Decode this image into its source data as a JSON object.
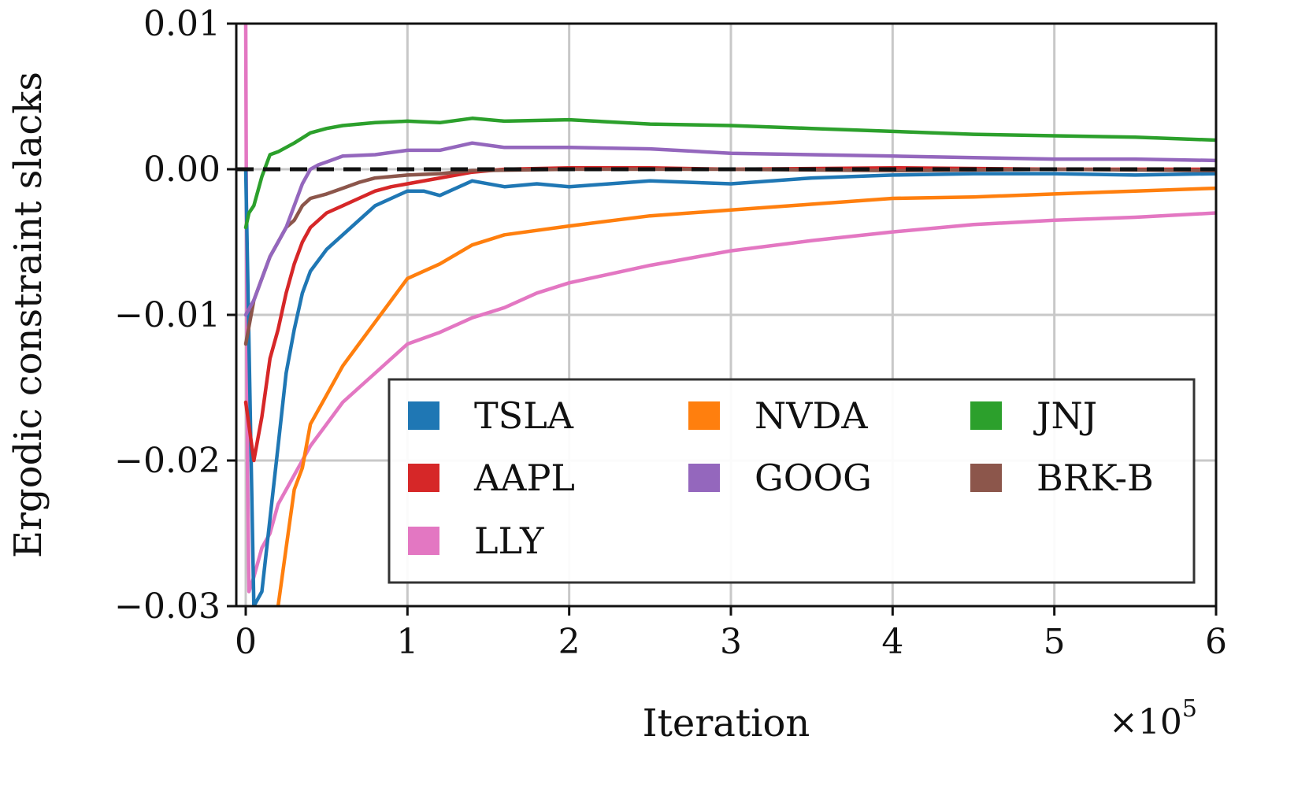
{
  "chart_data": {
    "type": "line",
    "title": "",
    "xlabel": "Iteration",
    "ylabel": "Ergodic constraint slacks",
    "x_offset_label": "×10",
    "x_offset_exponent": "5",
    "xlim": [
      -0.05,
      6
    ],
    "ylim": [
      -0.03,
      0.01
    ],
    "xticks": [
      0,
      1,
      2,
      3,
      4,
      5,
      6
    ],
    "xtick_labels": [
      "0",
      "1",
      "2",
      "3",
      "4",
      "5",
      "6"
    ],
    "yticks": [
      0.01,
      0.0,
      -0.01,
      -0.02,
      -0.03
    ],
    "ytick_labels": [
      "0.01",
      "0.00",
      "−0.01",
      "−0.02",
      "−0.03"
    ],
    "grid": true,
    "reference_line": {
      "y": 0.0,
      "style": "dashed",
      "color": "#111111"
    },
    "legend": {
      "placement": "lower-right",
      "columns": 3
    },
    "series": [
      {
        "name": "TSLA",
        "color": "#1f77b4",
        "x": [
          0.0,
          0.05,
          0.1,
          0.15,
          0.2,
          0.25,
          0.3,
          0.35,
          0.4,
          0.5,
          0.6,
          0.7,
          0.8,
          0.9,
          1.0,
          1.1,
          1.2,
          1.4,
          1.6,
          1.8,
          2.0,
          2.5,
          3.0,
          3.5,
          4.0,
          4.5,
          5.0,
          5.5,
          6.0
        ],
        "y": [
          -0.0,
          -0.03,
          -0.029,
          -0.024,
          -0.019,
          -0.014,
          -0.011,
          -0.0085,
          -0.007,
          -0.0055,
          -0.0045,
          -0.0035,
          -0.0025,
          -0.002,
          -0.0015,
          -0.0015,
          -0.0018,
          -0.0008,
          -0.0012,
          -0.001,
          -0.0012,
          -0.0008,
          -0.001,
          -0.0006,
          -0.0004,
          -0.0003,
          -0.0003,
          -0.0004,
          -0.0003
        ]
      },
      {
        "name": "NVDA",
        "color": "#ff7f0e",
        "x": [
          0.2,
          0.25,
          0.3,
          0.35,
          0.4,
          0.5,
          0.6,
          0.7,
          0.8,
          0.9,
          1.0,
          1.2,
          1.4,
          1.6,
          1.8,
          2.0,
          2.5,
          3.0,
          3.5,
          4.0,
          4.5,
          5.0,
          5.5,
          6.0
        ],
        "y": [
          -0.03,
          -0.026,
          -0.022,
          -0.0205,
          -0.0175,
          -0.0155,
          -0.0135,
          -0.012,
          -0.0105,
          -0.009,
          -0.0075,
          -0.0065,
          -0.0052,
          -0.0045,
          -0.0042,
          -0.0039,
          -0.0032,
          -0.0028,
          -0.0024,
          -0.002,
          -0.0019,
          -0.0017,
          -0.0015,
          -0.0013
        ]
      },
      {
        "name": "JNJ",
        "color": "#2ca02c",
        "x": [
          0.0,
          0.02,
          0.05,
          0.1,
          0.15,
          0.2,
          0.3,
          0.4,
          0.5,
          0.6,
          0.8,
          1.0,
          1.2,
          1.4,
          1.6,
          2.0,
          2.5,
          3.0,
          3.5,
          4.0,
          4.5,
          5.0,
          5.5,
          6.0
        ],
        "y": [
          -0.004,
          -0.003,
          -0.0025,
          -0.0005,
          0.001,
          0.0012,
          0.0018,
          0.0025,
          0.0028,
          0.003,
          0.0032,
          0.0033,
          0.0032,
          0.0035,
          0.0033,
          0.0034,
          0.0031,
          0.003,
          0.0028,
          0.0026,
          0.0024,
          0.0023,
          0.0022,
          0.002
        ]
      },
      {
        "name": "AAPL",
        "color": "#d62728",
        "x": [
          0.0,
          0.05,
          0.1,
          0.15,
          0.2,
          0.25,
          0.3,
          0.35,
          0.4,
          0.5,
          0.6,
          0.7,
          0.8,
          0.9,
          1.0,
          1.2,
          1.4,
          1.6,
          2.0,
          2.5,
          3.0,
          4.0,
          5.0,
          6.0
        ],
        "y": [
          -0.016,
          -0.02,
          -0.017,
          -0.013,
          -0.011,
          -0.0085,
          -0.0065,
          -0.005,
          -0.004,
          -0.003,
          -0.0025,
          -0.002,
          -0.0015,
          -0.0012,
          -0.001,
          -0.0006,
          -0.0002,
          0.0,
          0.0001,
          0.0001,
          0.0,
          0.0001,
          0.0,
          0.0
        ]
      },
      {
        "name": "GOOG",
        "color": "#9467bd",
        "x": [
          0.0,
          0.05,
          0.1,
          0.15,
          0.2,
          0.25,
          0.3,
          0.35,
          0.4,
          0.45,
          0.5,
          0.6,
          0.8,
          1.0,
          1.2,
          1.4,
          1.6,
          2.0,
          2.5,
          3.0,
          3.5,
          4.0,
          4.5,
          5.0,
          5.5,
          6.0
        ],
        "y": [
          -0.01,
          -0.009,
          -0.0075,
          -0.006,
          -0.005,
          -0.004,
          -0.0025,
          -0.001,
          0.0,
          0.0003,
          0.0005,
          0.0009,
          0.001,
          0.0013,
          0.0013,
          0.0018,
          0.0015,
          0.0015,
          0.0014,
          0.0011,
          0.001,
          0.0009,
          0.0008,
          0.0007,
          0.0007,
          0.0006
        ]
      },
      {
        "name": "BRK-B",
        "color": "#8c564b",
        "x": [
          0.0,
          0.05,
          0.1,
          0.15,
          0.2,
          0.25,
          0.3,
          0.35,
          0.4,
          0.5,
          0.6,
          0.7,
          0.8,
          0.9,
          1.0,
          1.2,
          1.4,
          2.0,
          3.0,
          4.0,
          5.0,
          6.0
        ],
        "y": [
          -0.012,
          -0.009,
          -0.0075,
          -0.006,
          -0.005,
          -0.004,
          -0.0035,
          -0.0025,
          -0.002,
          -0.0017,
          -0.0013,
          -0.0009,
          -0.0006,
          -0.0005,
          -0.0004,
          -0.0003,
          -0.0001,
          0.0,
          0.0,
          -0.0001,
          0.0,
          -0.0001
        ]
      },
      {
        "name": "LLY",
        "color": "#e377c2",
        "x": [
          0.0,
          0.01,
          0.02,
          0.05,
          0.1,
          0.15,
          0.2,
          0.3,
          0.4,
          0.5,
          0.6,
          0.7,
          0.8,
          0.9,
          1.0,
          1.2,
          1.4,
          1.6,
          1.8,
          2.0,
          2.5,
          3.0,
          3.5,
          4.0,
          4.5,
          5.0,
          5.5,
          6.0
        ],
        "y": [
          0.01,
          -0.02,
          -0.029,
          -0.028,
          -0.026,
          -0.025,
          -0.023,
          -0.021,
          -0.019,
          -0.0175,
          -0.016,
          -0.015,
          -0.014,
          -0.013,
          -0.012,
          -0.0112,
          -0.0102,
          -0.0095,
          -0.0085,
          -0.0078,
          -0.0066,
          -0.0056,
          -0.0049,
          -0.0043,
          -0.0038,
          -0.0035,
          -0.0033,
          -0.003
        ]
      }
    ]
  }
}
